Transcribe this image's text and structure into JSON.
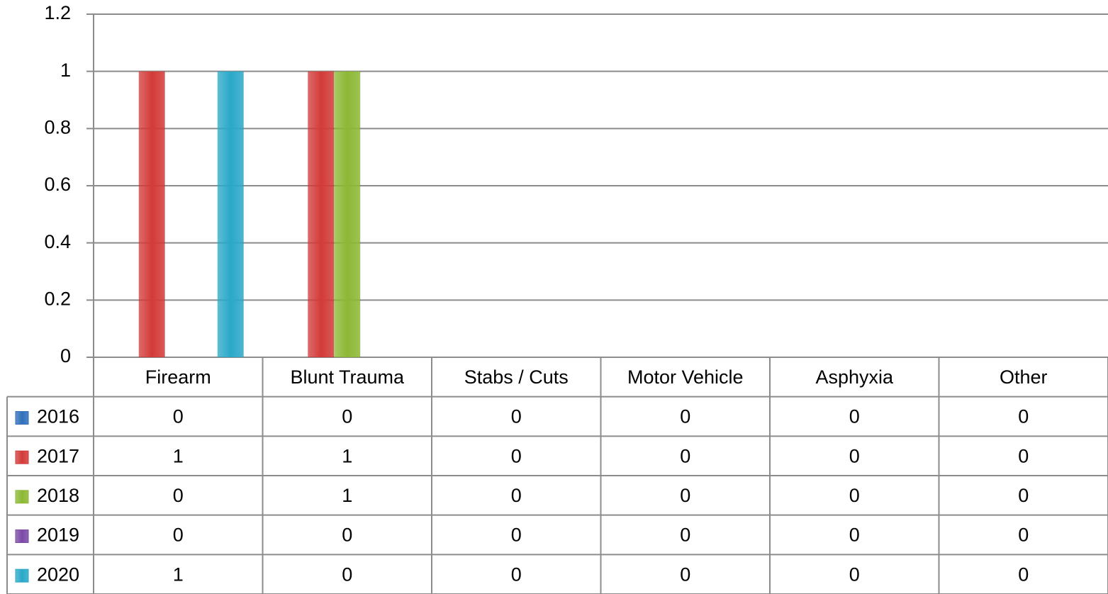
{
  "chart_data": {
    "type": "bar",
    "categories": [
      "Firearm",
      "Blunt Trauma",
      "Stabs / Cuts",
      "Motor Vehicle",
      "Asphyxia",
      "Other"
    ],
    "series": [
      {
        "name": "2016",
        "color": "#2f6fba",
        "values": [
          0,
          0,
          0,
          0,
          0,
          0
        ]
      },
      {
        "name": "2017",
        "color": "#d23b38",
        "values": [
          1,
          1,
          0,
          0,
          0,
          0
        ]
      },
      {
        "name": "2018",
        "color": "#8cb834",
        "values": [
          0,
          1,
          0,
          0,
          0,
          0
        ]
      },
      {
        "name": "2019",
        "color": "#7a4aa6",
        "values": [
          0,
          0,
          0,
          0,
          0,
          0
        ]
      },
      {
        "name": "2020",
        "color": "#2aa8c8",
        "values": [
          1,
          0,
          0,
          0,
          0,
          0
        ]
      }
    ],
    "ylim": [
      0,
      1.2
    ],
    "yticks": [
      0,
      0.2,
      0.4,
      0.6,
      0.8,
      1,
      1.2
    ],
    "grid": true,
    "data_table": true
  }
}
